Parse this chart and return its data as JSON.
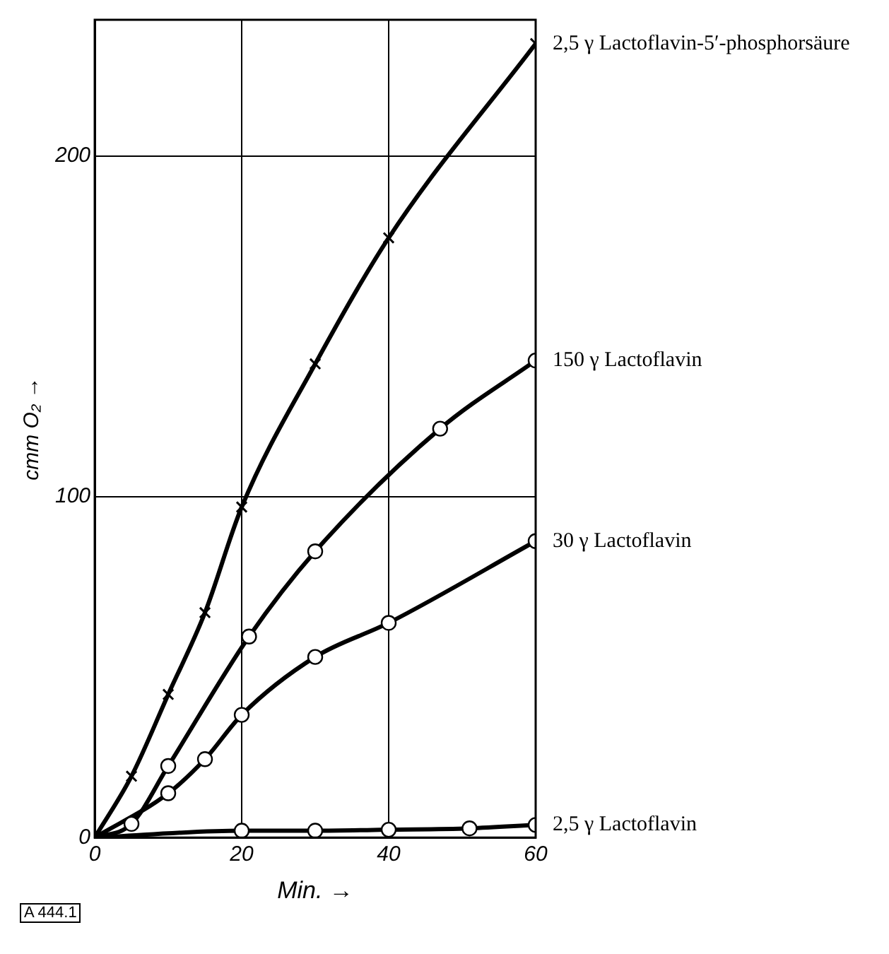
{
  "chart_data": {
    "type": "line",
    "xlabel": "Min. →",
    "ylabel": "cmm O₂ →",
    "xlim": [
      0,
      60
    ],
    "ylim": [
      0,
      240
    ],
    "xticks": [
      0,
      20,
      40,
      60
    ],
    "yticks": [
      0,
      100,
      200
    ],
    "grid": true,
    "legend": false,
    "line_style": "solid",
    "annotations": [
      "A 444.1"
    ],
    "series": [
      {
        "name": "2,5 γ Lactoflavin-5′-phosphorsäure",
        "color": "#000000",
        "marker": "cross",
        "x": [
          0,
          5,
          10,
          15,
          20,
          30,
          40,
          60
        ],
        "values": [
          0,
          18,
          42,
          66,
          97,
          139,
          176,
          233
        ]
      },
      {
        "name": "150 γ Lactoflavin",
        "color": "#000000",
        "marker": "circle",
        "x": [
          0,
          5,
          10,
          21,
          30,
          47,
          60
        ],
        "values": [
          0,
          4,
          21,
          59,
          84,
          120,
          140
        ]
      },
      {
        "name": "30 γ Lactoflavin",
        "color": "#000000",
        "marker": "circle",
        "x": [
          0,
          10,
          15,
          20,
          30,
          40,
          60
        ],
        "values": [
          0,
          13,
          23,
          36,
          53,
          63,
          87
        ]
      },
      {
        "name": "2,5 γ Lactoflavin",
        "color": "#000000",
        "marker": "circle",
        "x": [
          0,
          20,
          30,
          40,
          51,
          60
        ],
        "values": [
          0,
          2,
          2,
          2.3,
          2.7,
          3.7
        ]
      }
    ]
  }
}
